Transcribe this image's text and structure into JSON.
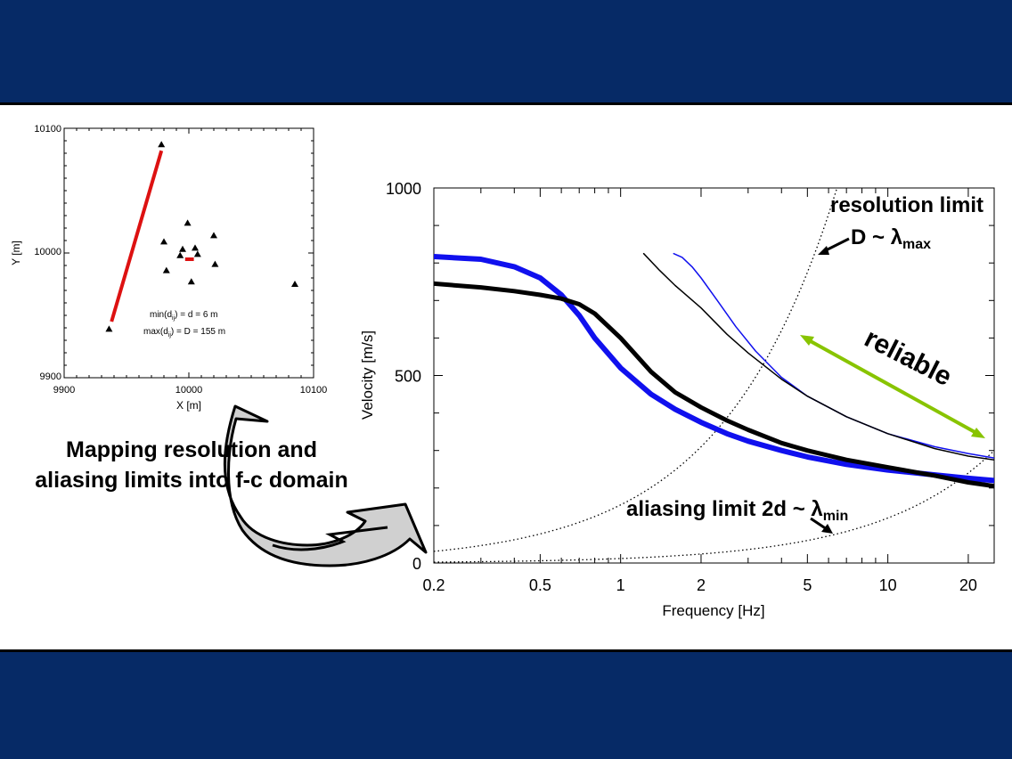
{
  "colors": {
    "background": "#062a66",
    "slide": "#ffffff",
    "blue": "#1010ee",
    "red": "#dd1111",
    "green": "#88c400",
    "black": "#000000"
  },
  "array_map": {
    "xlabel": "X [m]",
    "ylabel": "Y [m]",
    "xticks": [
      "9900",
      "10000",
      "10100"
    ],
    "yticks": [
      "9900",
      "10000",
      "10100"
    ],
    "xlim": [
      9900,
      10100
    ],
    "ylim": [
      9900,
      10100
    ],
    "stations": [
      {
        "x": 9978,
        "y": 10087
      },
      {
        "x": 9936,
        "y": 9939
      },
      {
        "x": 9999,
        "y": 10024
      },
      {
        "x": 9980,
        "y": 10009
      },
      {
        "x": 10020,
        "y": 10014
      },
      {
        "x": 9995,
        "y": 10003
      },
      {
        "x": 10005,
        "y": 10004
      },
      {
        "x": 9993,
        "y": 9998
      },
      {
        "x": 10007,
        "y": 9999
      },
      {
        "x": 9982,
        "y": 9986
      },
      {
        "x": 10021,
        "y": 9991
      },
      {
        "x": 10002,
        "y": 9977
      },
      {
        "x": 10085,
        "y": 9975
      }
    ],
    "max_line": {
      "x1": 9938,
      "y1": 9945,
      "x2": 9978,
      "y2": 10082
    },
    "min_segment": {
      "x1": 9997,
      "y1": 9995,
      "x2": 10004,
      "y2": 9995
    },
    "annotation_min": "min(d",
    "annotation_min_sub": "ij",
    "annotation_min_rest": ") = d = 6 m",
    "annotation_max": "max(d",
    "annotation_max_sub": "ij",
    "annotation_max_rest": ") = D = 155 m"
  },
  "mapping_label_line1": "Mapping resolution and",
  "mapping_label_line2": "aliasing limits into f-c domain",
  "chart_data": {
    "type": "line",
    "xlabel": "Frequency [Hz]",
    "ylabel": "Velocity [m/s]",
    "xscale": "log",
    "xlim": [
      0.2,
      25
    ],
    "ylim": [
      0,
      1000
    ],
    "xticks": [
      "0.2",
      "0.5",
      "1",
      "2",
      "5",
      "10",
      "20"
    ],
    "yticks": [
      "0",
      "500",
      "1000"
    ],
    "series": [
      {
        "style": "thick-blue",
        "x": [
          0.2,
          0.3,
          0.4,
          0.5,
          0.6,
          0.7,
          0.8,
          1.0,
          1.3,
          1.6,
          2,
          2.5,
          3,
          4,
          5,
          7,
          10,
          15,
          20,
          25
        ],
        "y": [
          817,
          810,
          790,
          760,
          715,
          660,
          600,
          520,
          450,
          410,
          375,
          345,
          325,
          300,
          283,
          263,
          248,
          235,
          226,
          220
        ]
      },
      {
        "style": "thick-black",
        "x": [
          0.2,
          0.3,
          0.4,
          0.5,
          0.6,
          0.7,
          0.8,
          1.0,
          1.3,
          1.6,
          2,
          2.5,
          3,
          4,
          5,
          7,
          10,
          15,
          20,
          25
        ],
        "y": [
          745,
          735,
          725,
          715,
          705,
          690,
          665,
          600,
          510,
          455,
          415,
          380,
          355,
          320,
          300,
          275,
          255,
          233,
          215,
          205
        ]
      },
      {
        "style": "thin-blue",
        "x": [
          1.58,
          1.7,
          1.85,
          2,
          2.3,
          2.7,
          3.2,
          4,
          5,
          7,
          10,
          15,
          20,
          25
        ],
        "y": [
          825,
          815,
          790,
          760,
          700,
          630,
          565,
          495,
          445,
          390,
          345,
          310,
          292,
          280
        ]
      },
      {
        "style": "thin-black",
        "x": [
          1.22,
          1.4,
          1.6,
          2,
          2.5,
          3,
          4,
          5,
          7,
          10,
          15,
          20,
          25
        ],
        "y": [
          825,
          780,
          740,
          680,
          610,
          560,
          490,
          445,
          390,
          345,
          305,
          285,
          275
        ]
      }
    ],
    "limit_curves": [
      {
        "name": "resolution limit",
        "formula": "c = f * 155",
        "coef": 155
      },
      {
        "name": "aliasing limit",
        "formula": "c = f * 12",
        "coef": 12
      }
    ],
    "annotations": {
      "resolution_title": "resolution limit",
      "resolution_formula": "D ~ ",
      "lambda": "λ",
      "resolution_sub": "max",
      "aliasing_title": "aliasing limit 2d ~ ",
      "aliasing_sub": "min",
      "reliable": "reliable"
    }
  }
}
